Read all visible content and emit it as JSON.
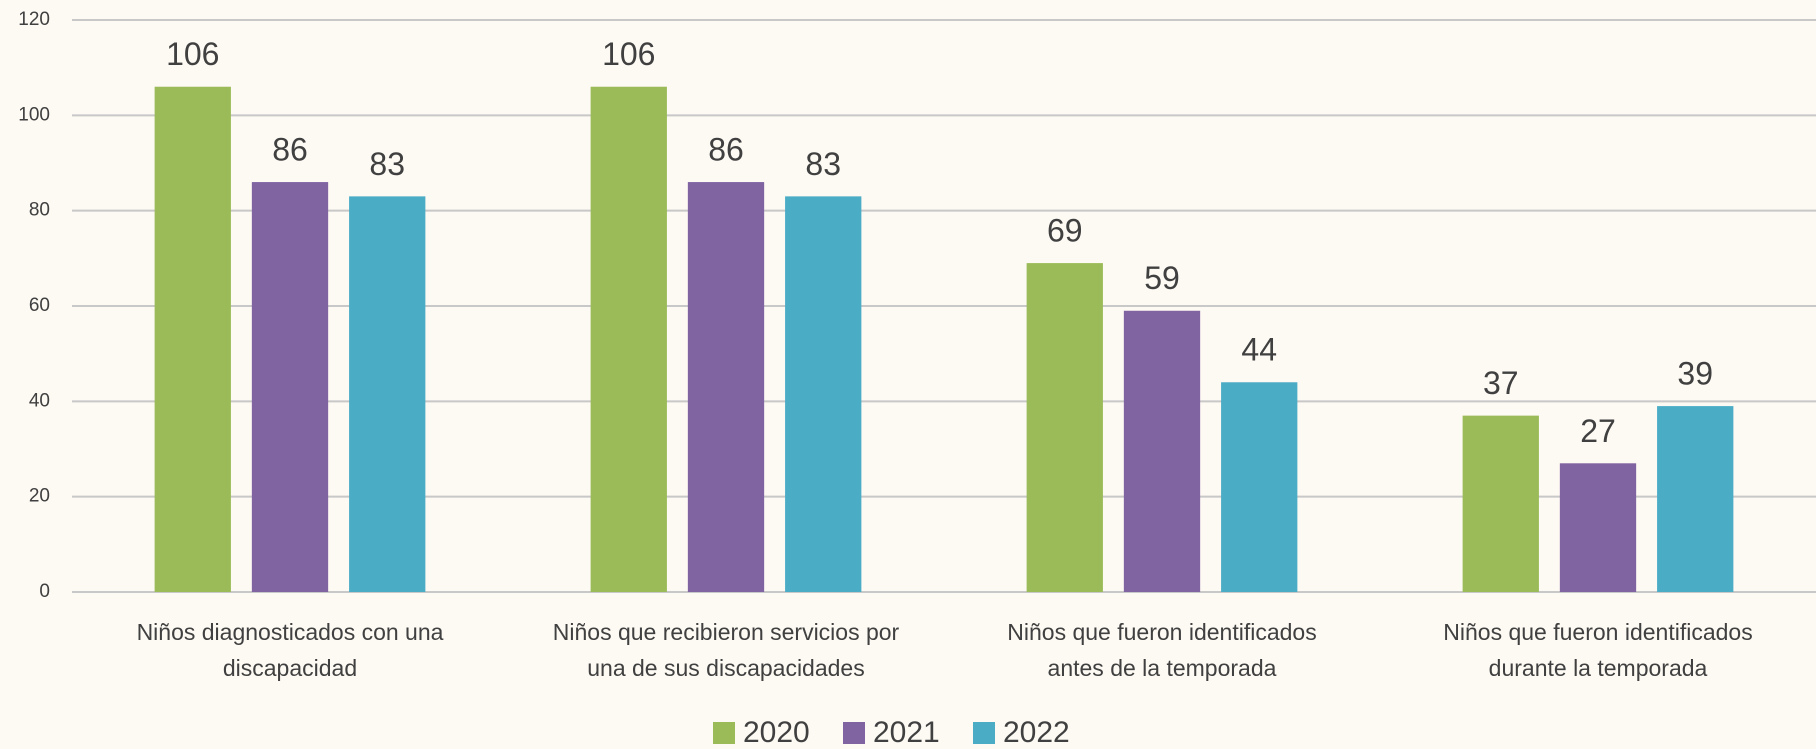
{
  "chart_data": {
    "type": "bar",
    "categories": [
      "Niños diagnosticados con una\ndiscapacidad",
      "Niños que recibieron servicios por\nuna de sus discapacidades",
      "Niños que fueron identificados\nantes de la temporada",
      "Niños que fueron identificados\ndurante la temporada"
    ],
    "series": [
      {
        "name": "2020",
        "color": "#9bbb59",
        "values": [
          106,
          106,
          69,
          37
        ]
      },
      {
        "name": "2021",
        "color": "#8064a2",
        "values": [
          86,
          86,
          59,
          27
        ]
      },
      {
        "name": "2022",
        "color": "#4bacc6",
        "values": [
          83,
          83,
          44,
          39
        ]
      }
    ],
    "ylim": [
      0,
      120
    ],
    "yticks": [
      0,
      20,
      40,
      60,
      80,
      100,
      120
    ],
    "grid": true,
    "legend": "bottom"
  }
}
